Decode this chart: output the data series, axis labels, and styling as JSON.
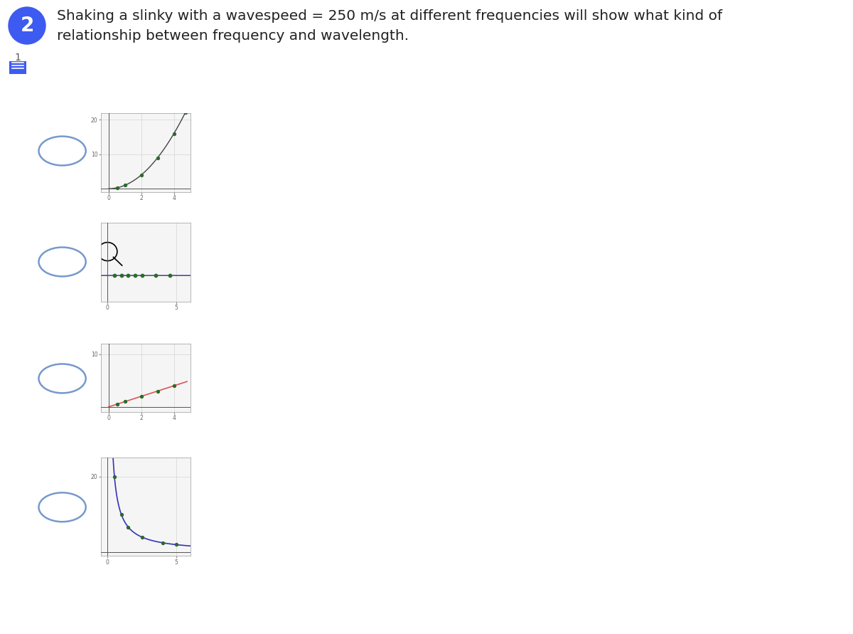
{
  "title_line1": "Shaking a slinky with a wavespeed = 250 m/s at different frequencies will show what kind of",
  "title_line2": "relationship between frequency and wavelength.",
  "title_fontsize": 15,
  "background_color": "#ffffff",
  "graphs": [
    {
      "type": "exponential",
      "xlim": [
        -0.5,
        5
      ],
      "ylim": [
        -1,
        22
      ],
      "xticks": [
        0,
        2,
        4
      ],
      "yticks": [
        10,
        20
      ],
      "dot_color": "#2d6a2d",
      "line_color": "#444444",
      "points_x": [
        0.5,
        1.0,
        2.0,
        3.0,
        4.0,
        4.7
      ],
      "points_y": [
        0.25,
        1.0,
        4.0,
        9.0,
        16.0,
        22.09
      ]
    },
    {
      "type": "horizontal",
      "xlim": [
        -0.5,
        6
      ],
      "ylim": [
        -2,
        4
      ],
      "xticks": [
        0,
        5
      ],
      "yticks": [],
      "dot_color": "#2d6a2d",
      "line_color": "#7070bb",
      "points_x": [
        0.5,
        1.0,
        1.5,
        2.0,
        2.5,
        3.5,
        4.5
      ],
      "points_y": [
        0,
        0,
        0,
        0,
        0,
        0,
        0
      ]
    },
    {
      "type": "linear",
      "xlim": [
        -0.5,
        5
      ],
      "ylim": [
        -1,
        12
      ],
      "xticks": [
        0,
        2,
        4
      ],
      "yticks": [
        10
      ],
      "dot_color": "#2d6a2d",
      "line_color": "#dd5555",
      "points_x": [
        0.5,
        1.0,
        2.0,
        3.0,
        4.0
      ],
      "points_y": [
        0.5,
        1.0,
        2.0,
        3.0,
        4.0
      ]
    },
    {
      "type": "hyperbolic",
      "xlim": [
        -0.5,
        6
      ],
      "ylim": [
        -1,
        25
      ],
      "xticks": [
        0,
        5
      ],
      "yticks": [
        20
      ],
      "dot_color": "#2d6a2d",
      "line_color": "#3333bb",
      "points_x": [
        0.5,
        1.0,
        1.5,
        2.5,
        4.0,
        5.0
      ],
      "points_y": [
        20.0,
        10.0,
        6.67,
        4.0,
        2.5,
        2.0
      ]
    }
  ]
}
